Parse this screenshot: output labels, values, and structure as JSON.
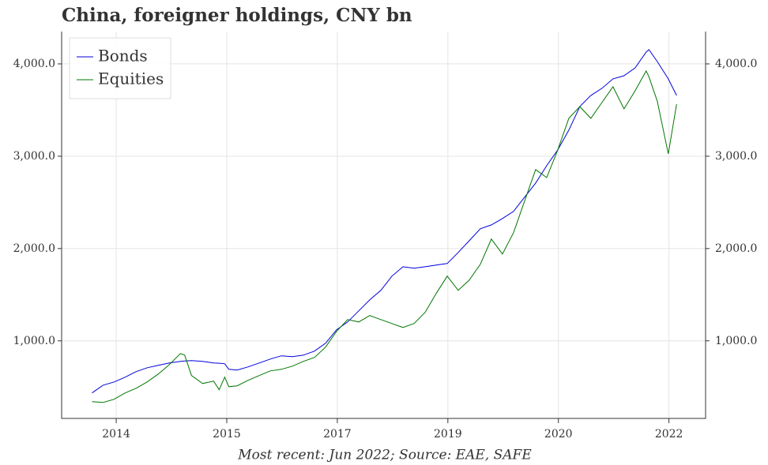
{
  "chart_data": {
    "type": "line",
    "title": "China, foreigner holdings, CNY bn",
    "footnote": "Most recent: Jun 2022; Source: EAE, SAFE",
    "x": [
      2013.65,
      2013.81,
      2013.97,
      2014.13,
      2014.29,
      2014.45,
      2014.61,
      2014.77,
      2014.93,
      2014.99,
      2015.09,
      2015.25,
      2015.41,
      2015.49,
      2015.57,
      2015.63,
      2015.75,
      2015.91,
      2016.07,
      2016.23,
      2016.39,
      2016.55,
      2016.71,
      2016.87,
      2017.03,
      2017.19,
      2017.35,
      2017.51,
      2017.67,
      2017.83,
      2017.99,
      2018.15,
      2018.31,
      2018.47,
      2018.63,
      2018.79,
      2018.95,
      2019.11,
      2019.27,
      2019.43,
      2019.59,
      2019.75,
      2019.91,
      2020.07,
      2020.23,
      2020.39,
      2020.55,
      2020.71,
      2020.87,
      2021.03,
      2021.19,
      2021.35,
      2021.51,
      2021.67,
      2021.71,
      2021.83,
      2021.99,
      2022.11
    ],
    "series": [
      {
        "name": "Bonds",
        "color": "#0000dd",
        "values": [
          436,
          520,
          555,
          607,
          667,
          709,
          735,
          760,
          778,
          782,
          786,
          778,
          760,
          758,
          752,
          692,
          684,
          718,
          760,
          803,
          838,
          829,
          846,
          889,
          974,
          1120,
          1205,
          1325,
          1444,
          1547,
          1701,
          1803,
          1786,
          1803,
          1821,
          1838,
          1957,
          2085,
          2214,
          2256,
          2325,
          2402,
          2556,
          2709,
          2897,
          3068,
          3282,
          3538,
          3658,
          3735,
          3838,
          3872,
          3957,
          4128,
          4154,
          4026,
          3838,
          3658
        ]
      },
      {
        "name": "Equities",
        "color": "#007700",
        "values": [
          342,
          333,
          368,
          436,
          487,
          556,
          641,
          744,
          863,
          846,
          624,
          538,
          564,
          470,
          607,
          504,
          513,
          573,
          624,
          675,
          692,
          726,
          778,
          821,
          932,
          1103,
          1231,
          1205,
          1274,
          1231,
          1188,
          1145,
          1188,
          1308,
          1513,
          1701,
          1547,
          1658,
          1829,
          2103,
          1940,
          2171,
          2513,
          2855,
          2769,
          3068,
          3410,
          3538,
          3410,
          3581,
          3752,
          3513,
          3709,
          3923,
          3860,
          3598,
          3026,
          3564
        ]
      }
    ],
    "xlim": [
      2013.21,
      2022.53
    ],
    "xticks": [
      {
        "value": 2014,
        "label": "2014"
      },
      {
        "value": 2015.6,
        "label": "2015"
      },
      {
        "value": 2017.2,
        "label": "2017"
      },
      {
        "value": 2018.8,
        "label": "2019"
      },
      {
        "value": 2020.4,
        "label": "2020"
      },
      {
        "value": 2022,
        "label": "2022"
      }
    ],
    "ylim": [
      160,
      4350
    ],
    "yticks": [
      {
        "value": 1000,
        "label": "1,000.0"
      },
      {
        "value": 2000,
        "label": "2,000.0"
      },
      {
        "value": 3000,
        "label": "3,000.0"
      },
      {
        "value": 4000,
        "label": "4,000.0"
      }
    ],
    "grid": true,
    "legend": "upper left"
  }
}
